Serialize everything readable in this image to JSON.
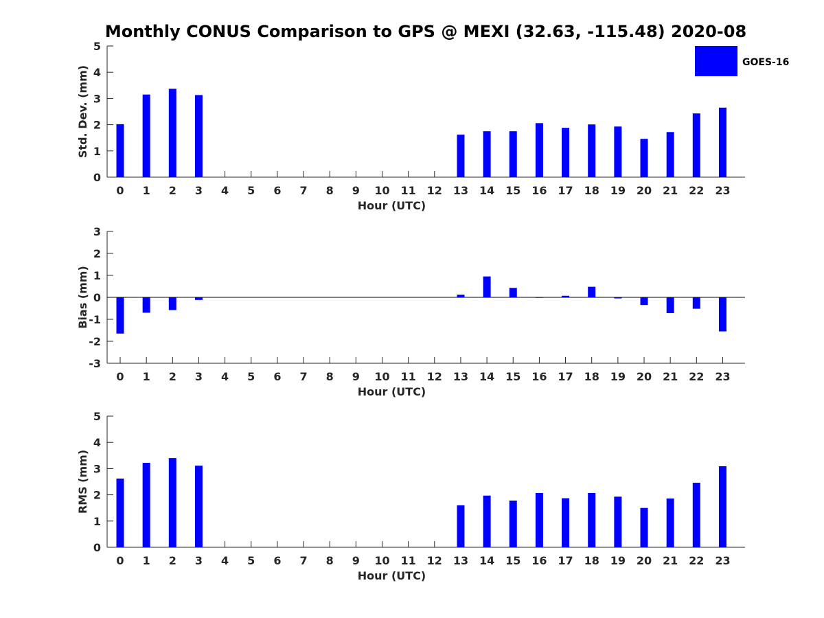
{
  "title": "Monthly CONUS Comparison to GPS @ MEXI (32.63, -115.48) 2020-08",
  "legend": {
    "label": "GOES-16",
    "color": "#0000ff",
    "placement": "top-right"
  },
  "chart_data": [
    {
      "type": "bar",
      "ylabel": "Std. Dev. (mm)",
      "xlabel": "Hour (UTC)",
      "ylim": [
        0,
        5
      ],
      "yticks": [
        0,
        1,
        2,
        3,
        4,
        5
      ],
      "categories": [
        "0",
        "1",
        "2",
        "3",
        "4",
        "5",
        "6",
        "7",
        "8",
        "9",
        "10",
        "11",
        "12",
        "13",
        "14",
        "15",
        "16",
        "17",
        "18",
        "19",
        "20",
        "21",
        "22",
        "23"
      ],
      "series": [
        {
          "name": "GOES-16",
          "color": "#0000ff",
          "values": [
            2.02,
            3.15,
            3.37,
            3.13,
            null,
            null,
            null,
            null,
            null,
            null,
            null,
            null,
            null,
            1.62,
            1.75,
            1.75,
            2.06,
            1.88,
            2.01,
            1.93,
            1.46,
            1.72,
            2.43,
            2.65
          ]
        }
      ],
      "zero_line": false
    },
    {
      "type": "bar",
      "ylabel": "Bias (mm)",
      "xlabel": "Hour (UTC)",
      "ylim": [
        -3,
        3
      ],
      "yticks": [
        -3,
        -2,
        -1,
        0,
        1,
        2,
        3
      ],
      "categories": [
        "0",
        "1",
        "2",
        "3",
        "4",
        "5",
        "6",
        "7",
        "8",
        "9",
        "10",
        "11",
        "12",
        "13",
        "14",
        "15",
        "16",
        "17",
        "18",
        "19",
        "20",
        "21",
        "22",
        "23"
      ],
      "series": [
        {
          "name": "GOES-16",
          "color": "#0000ff",
          "values": [
            -1.65,
            -0.7,
            -0.58,
            -0.12,
            null,
            null,
            null,
            null,
            null,
            null,
            null,
            null,
            null,
            0.12,
            0.95,
            0.43,
            0.0,
            0.07,
            0.48,
            -0.05,
            -0.35,
            -0.72,
            -0.52,
            -1.55
          ]
        }
      ],
      "zero_line": true
    },
    {
      "type": "bar",
      "ylabel": "RMS (mm)",
      "xlabel": "Hour (UTC)",
      "ylim": [
        0,
        5
      ],
      "yticks": [
        0,
        1,
        2,
        3,
        4,
        5
      ],
      "categories": [
        "0",
        "1",
        "2",
        "3",
        "4",
        "5",
        "6",
        "7",
        "8",
        "9",
        "10",
        "11",
        "12",
        "13",
        "14",
        "15",
        "16",
        "17",
        "18",
        "19",
        "20",
        "21",
        "22",
        "23"
      ],
      "series": [
        {
          "name": "GOES-16",
          "color": "#0000ff",
          "values": [
            2.62,
            3.22,
            3.4,
            3.11,
            null,
            null,
            null,
            null,
            null,
            null,
            null,
            null,
            null,
            1.6,
            1.97,
            1.78,
            2.07,
            1.87,
            2.07,
            1.93,
            1.5,
            1.86,
            2.46,
            3.09
          ]
        }
      ],
      "zero_line": false
    }
  ]
}
